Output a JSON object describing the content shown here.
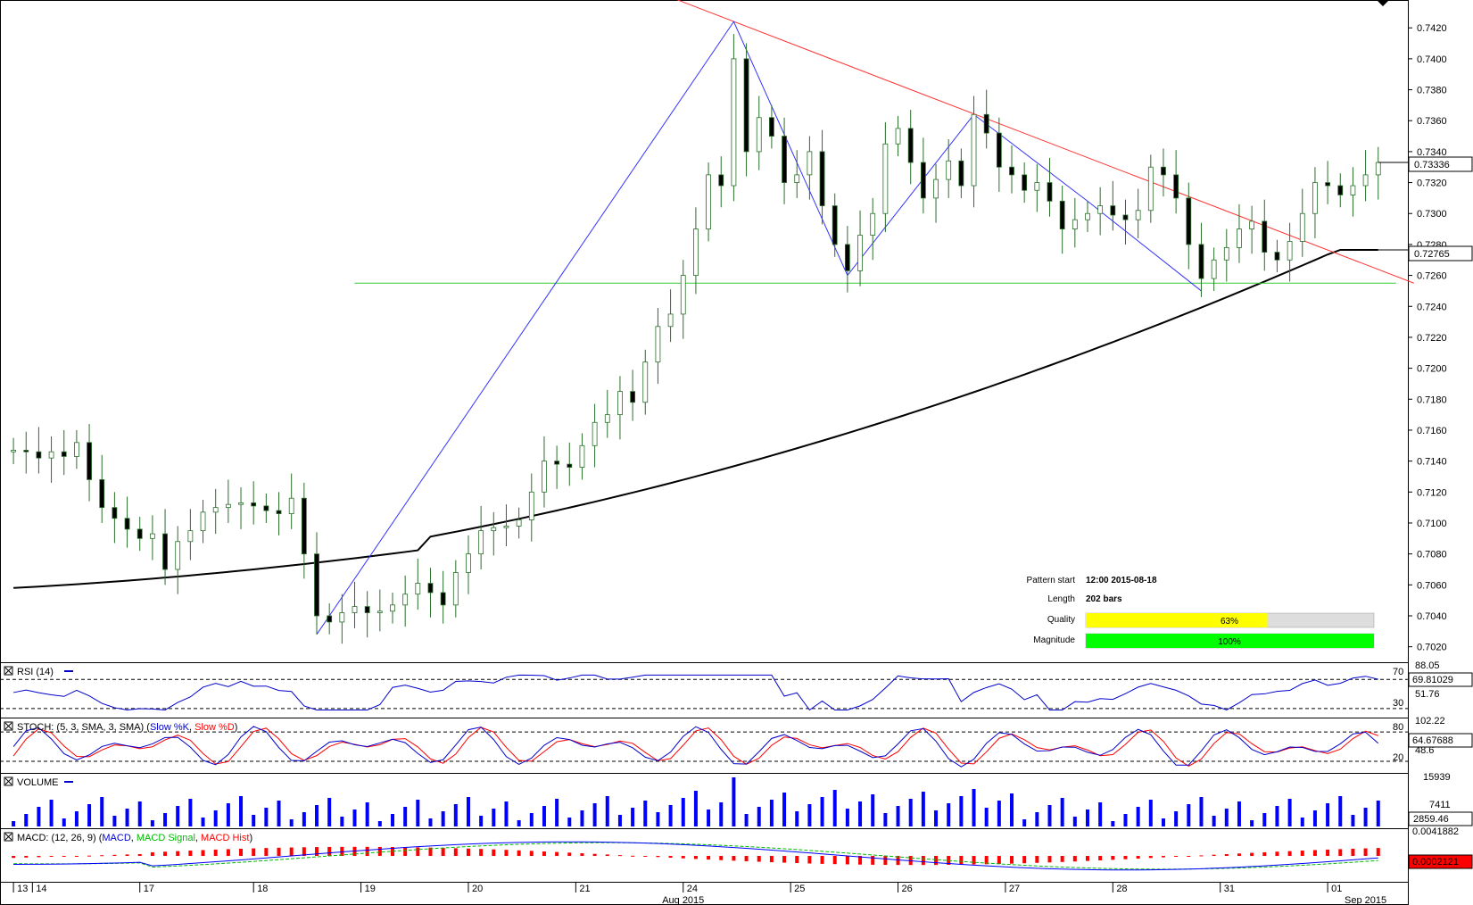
{
  "chart_data": {
    "type": "candlestick",
    "main": {
      "y_ticks": [
        "0.7420",
        "0.7400",
        "0.7380",
        "0.7360",
        "0.7340",
        "0.7320",
        "0.7300",
        "0.7280",
        "0.7260",
        "0.7240",
        "0.7220",
        "0.7200",
        "0.7180",
        "0.7160",
        "0.7140",
        "0.7120",
        "0.7100",
        "0.7080",
        "0.7060",
        "0.7040",
        "0.7020"
      ],
      "ylim": [
        0.701,
        0.7438
      ],
      "last_price": "0.73336",
      "ma_value": "0.72765",
      "support_level": 0.7255,
      "pattern_points": [
        {
          "bar": 24,
          "price": 0.7028
        },
        {
          "bar": 57,
          "price": 0.7424
        },
        {
          "bar": 66,
          "price": 0.726
        },
        {
          "bar": 76,
          "price": 0.7364
        },
        {
          "bar": 85,
          "price": 0.7308
        },
        {
          "bar": 94,
          "price": 0.725
        }
      ],
      "resistance_line": [
        {
          "bar": 53,
          "price": 0.744
        },
        {
          "bar": 108,
          "price": 0.7255
        }
      ]
    },
    "candles": {
      "closes": [
        0.7147,
        0.7146,
        0.7142,
        0.7146,
        0.7143,
        0.7152,
        0.7128,
        0.711,
        0.7103,
        0.7096,
        0.709,
        0.7093,
        0.707,
        0.7088,
        0.7095,
        0.7107,
        0.711,
        0.7112,
        0.7113,
        0.7111,
        0.7108,
        0.7106,
        0.7116,
        0.708,
        0.704,
        0.7036,
        0.7042,
        0.7046,
        0.7042,
        0.7043,
        0.7047,
        0.7054,
        0.7061,
        0.7055,
        0.7047,
        0.7068,
        0.708,
        0.7095,
        0.7097,
        0.7098,
        0.7102,
        0.712,
        0.714,
        0.7138,
        0.7136,
        0.715,
        0.7165,
        0.717,
        0.7185,
        0.7178,
        0.7204,
        0.7227,
        0.7235,
        0.726,
        0.729,
        0.7325,
        0.7318,
        0.74,
        0.734,
        0.7362,
        0.735,
        0.732,
        0.7325,
        0.734,
        0.7305,
        0.728,
        0.7263,
        0.7286,
        0.73,
        0.7345,
        0.7355,
        0.7333,
        0.731,
        0.7322,
        0.7334,
        0.7318,
        0.7364,
        0.7352,
        0.733,
        0.7325,
        0.7315,
        0.732,
        0.7308,
        0.729,
        0.7296,
        0.73,
        0.7305,
        0.7299,
        0.7296,
        0.7302,
        0.733,
        0.7325,
        0.731,
        0.728,
        0.7258,
        0.727,
        0.7278,
        0.729,
        0.7295,
        0.7275,
        0.727,
        0.7282,
        0.73,
        0.732,
        0.7318,
        0.7312,
        0.7318,
        0.7325,
        0.7333
      ],
      "opens": [
        0.7146,
        0.7147,
        0.7146,
        0.7142,
        0.7146,
        0.7143,
        0.7152,
        0.7128,
        0.711,
        0.7103,
        0.7096,
        0.709,
        0.7093,
        0.707,
        0.7088,
        0.7095,
        0.7107,
        0.711,
        0.7112,
        0.7113,
        0.7111,
        0.7108,
        0.7106,
        0.7116,
        0.708,
        0.704,
        0.7036,
        0.7042,
        0.7046,
        0.7042,
        0.7043,
        0.7047,
        0.7054,
        0.7061,
        0.7055,
        0.7047,
        0.7068,
        0.708,
        0.7095,
        0.7097,
        0.7098,
        0.7102,
        0.712,
        0.714,
        0.7138,
        0.7136,
        0.715,
        0.7165,
        0.717,
        0.7185,
        0.7178,
        0.7204,
        0.7227,
        0.7235,
        0.726,
        0.729,
        0.7325,
        0.7318,
        0.74,
        0.734,
        0.7362,
        0.735,
        0.732,
        0.7325,
        0.734,
        0.7305,
        0.728,
        0.7263,
        0.7286,
        0.73,
        0.7345,
        0.7355,
        0.7333,
        0.731,
        0.7322,
        0.7334,
        0.7318,
        0.7364,
        0.7352,
        0.733,
        0.7325,
        0.7315,
        0.732,
        0.7308,
        0.729,
        0.7296,
        0.73,
        0.7305,
        0.7299,
        0.7296,
        0.7302,
        0.733,
        0.7325,
        0.731,
        0.728,
        0.7258,
        0.727,
        0.7278,
        0.729,
        0.7295,
        0.7275,
        0.727,
        0.7282,
        0.73,
        0.732,
        0.7318,
        0.7312,
        0.7318,
        0.7325
      ]
    },
    "x_labels": [
      "13",
      "14",
      "17",
      "18",
      "19",
      "20",
      "21",
      "24",
      "25",
      "26",
      "27",
      "28",
      "31",
      "01"
    ],
    "x_label_bars": [
      0,
      1.5,
      10,
      19,
      27.5,
      36,
      44.5,
      53,
      61.5,
      70,
      78.5,
      87,
      95.5,
      104
    ],
    "x_month_labels": [
      {
        "text": "Aug 2015",
        "bar": 53
      },
      {
        "text": "Sep 2015",
        "bar": 107
      }
    ],
    "pattern_info": {
      "pattern_start_label": "Pattern start",
      "pattern_start_value": "12:00 2015-08-18",
      "length_label": "Length",
      "length_value": "202 bars",
      "quality_label": "Quality",
      "quality_value": "63%",
      "quality_fraction": 0.63,
      "magnitude_label": "Magnitude",
      "magnitude_value": "100%",
      "magnitude_fraction": 1.0
    },
    "rsi": {
      "title": "RSI (14)",
      "levels": [
        "70",
        "30"
      ],
      "top_value": "88.05",
      "mid_value": "51.76",
      "current": "69.81029"
    },
    "stoch": {
      "title_prefix": "STOCH: (5, 3, SMA, 3, SMA)",
      "k_label": "Slow %K",
      "d_label": "Slow %D",
      "levels": [
        "80",
        "20"
      ],
      "top_value": "102.22",
      "mid_value": "48.6",
      "current": "64.67688"
    },
    "volume": {
      "title": "VOLUME",
      "top_value": "15939",
      "mid_value": "7411",
      "current": "2859.46"
    },
    "macd": {
      "title_prefix": "MACD: (12, 26, 9)",
      "macd_label": "MACD",
      "signal_label": "MACD Signal",
      "hist_label": "MACD Hist",
      "top_value": "0.0041882",
      "current": "0.0002121"
    },
    "colors": {
      "up_candle": "#ffffff",
      "down_candle": "#000000",
      "wick": "#2a6e2a",
      "ma": "#000000",
      "pattern": "#3333ff",
      "resistance": "#ff3333",
      "support": "#33cc33",
      "quality_fill": "#ffff00",
      "magnitude_fill": "#00ff00",
      "rsi_line": "#0000cc",
      "stoch_k": "#0000cc",
      "stoch_d": "#ff0000",
      "volume": "#0000ff",
      "macd_line": "#0000ff",
      "macd_signal": "#00bb00",
      "macd_hist": "#ff0000",
      "current_tag_bg": "#ff0000"
    }
  }
}
